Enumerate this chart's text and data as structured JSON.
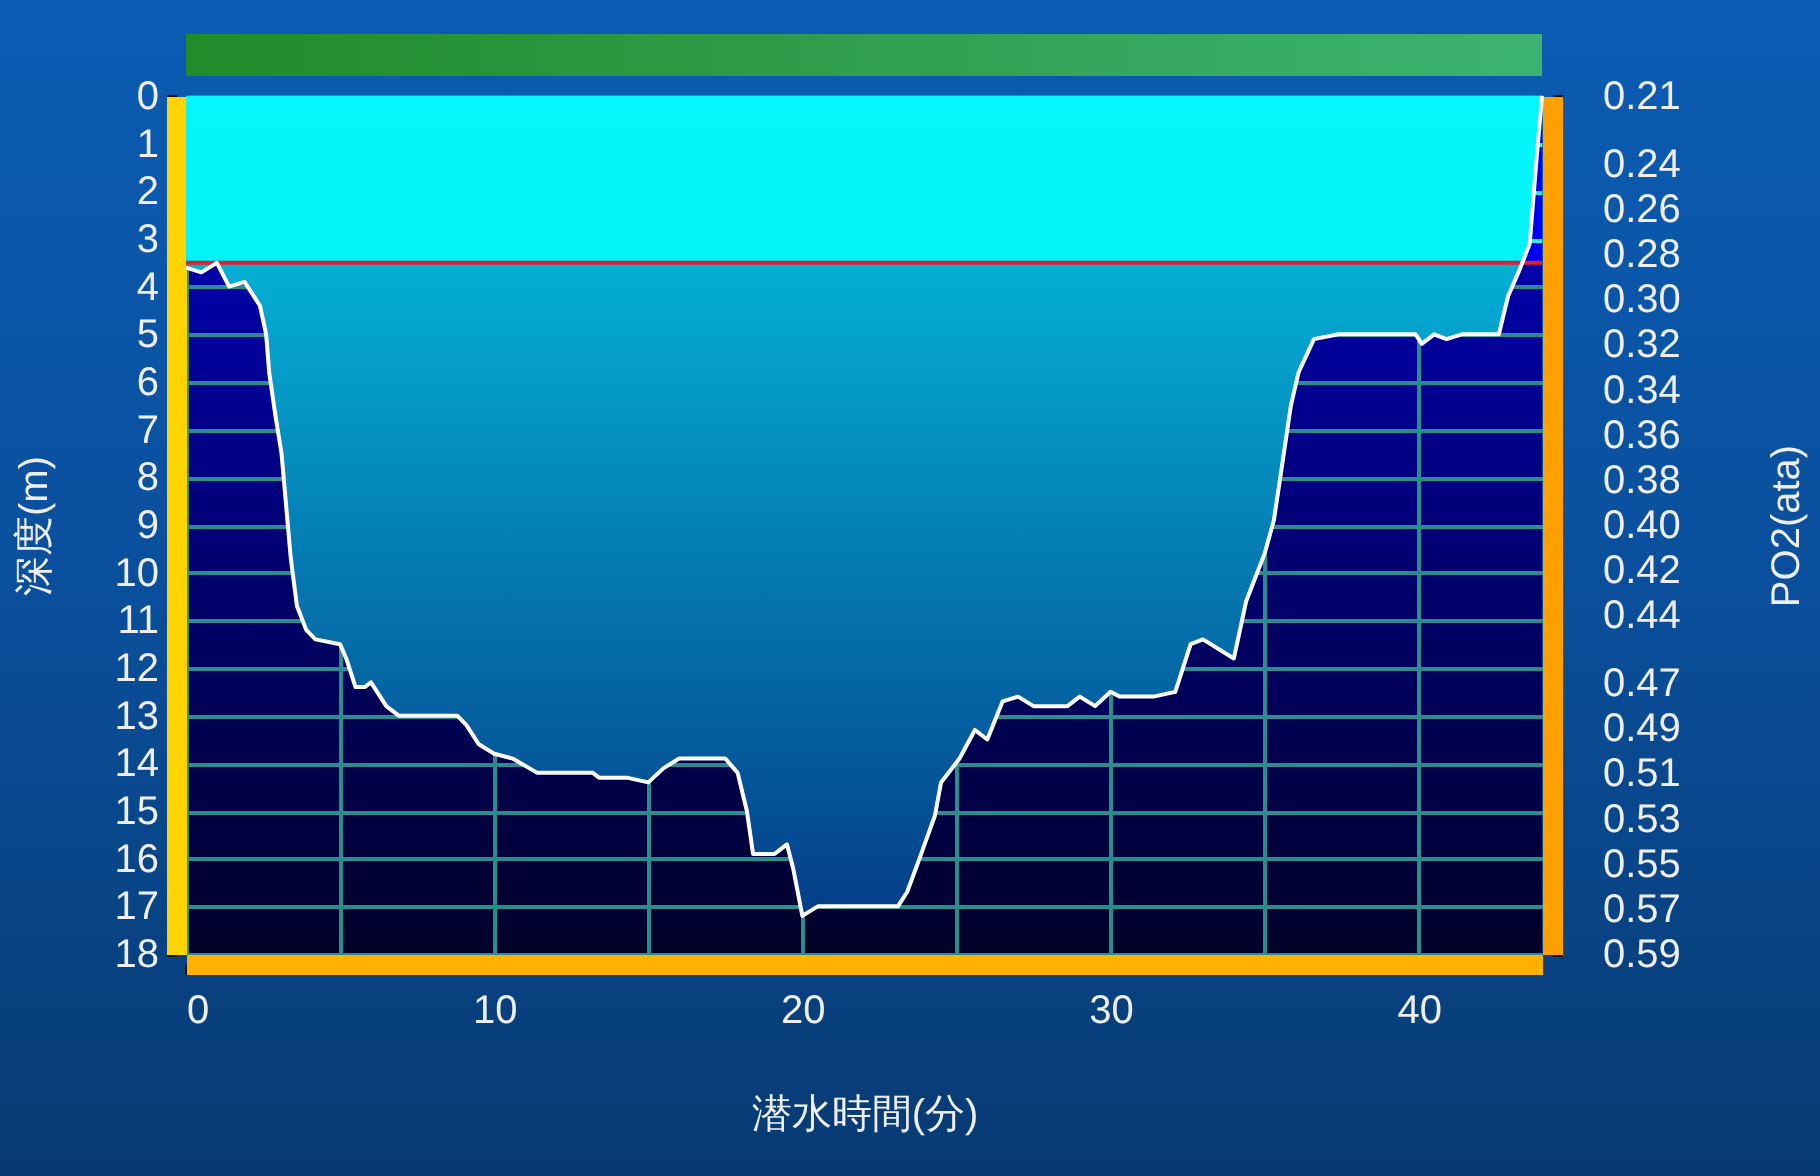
{
  "chart_data": {
    "type": "area",
    "xlabel": "潜水時間(分)",
    "ylabel": "深度(m)",
    "y2label": "PO2(ata)",
    "x": [
      0,
      0.5,
      1,
      1.4,
      1.9,
      2.4,
      2.6,
      2.7,
      2.9,
      3.1,
      3.25,
      3.4,
      3.6,
      3.9,
      4.2,
      5,
      5.2,
      5.5,
      5.8,
      6,
      6.5,
      6.9,
      8.8,
      9.1,
      9.5,
      10,
      10.6,
      11.4,
      13.2,
      13.4,
      14.3,
      15,
      15.5,
      16,
      16.5,
      17.5,
      17.9,
      18.2,
      18.4,
      19.1,
      19.5,
      19.7,
      20,
      20.5,
      23.1,
      23.4,
      23.8,
      24.3,
      24.5,
      25.1,
      25.6,
      26,
      26.5,
      27,
      27.5,
      28.6,
      29,
      29.5,
      30,
      30.3,
      31.4,
      32.1,
      32.6,
      33,
      34,
      34.4,
      35,
      35.3,
      35.6,
      35.85,
      36.1,
      36.6,
      37.4,
      39.9,
      40.1,
      40.5,
      40.9,
      41.4,
      42.6,
      42.9,
      43.3,
      43.6,
      43.8,
      44
    ],
    "series": [
      {
        "color": "#0a80c6",
        "values": [
          3.6,
          3.7,
          3.5,
          4.0,
          3.9,
          4.4,
          5.0,
          5.8,
          6.7,
          7.5,
          8.6,
          9.7,
          10.7,
          11.2,
          11.4,
          11.5,
          11.8,
          12.4,
          12.4,
          12.3,
          12.8,
          13.0,
          13.0,
          13.2,
          13.6,
          13.8,
          13.9,
          14.2,
          14.2,
          14.3,
          14.3,
          14.4,
          14.1,
          13.9,
          13.9,
          13.9,
          14.2,
          15.0,
          15.9,
          15.9,
          15.7,
          16.2,
          17.2,
          17.0,
          17.0,
          16.7,
          16.0,
          15.1,
          14.4,
          13.9,
          13.3,
          13.5,
          12.7,
          12.6,
          12.8,
          12.8,
          12.6,
          12.8,
          12.5,
          12.6,
          12.6,
          12.5,
          11.5,
          11.4,
          11.8,
          10.6,
          9.6,
          8.9,
          7.6,
          6.5,
          5.8,
          5.1,
          5.0,
          5.0,
          5.2,
          5.0,
          5.1,
          5.0,
          5.0,
          4.2,
          3.6,
          3.1,
          1.5,
          0
        ]
      }
    ],
    "xlim": [
      0,
      44
    ],
    "xticks": [
      0,
      {
        "value": 5,
        "label": null
      },
      10,
      {
        "value": 15,
        "label": null
      },
      20,
      {
        "value": 25,
        "label": null
      },
      30,
      {
        "value": 35,
        "label": null
      },
      40
    ],
    "ylim": [
      18,
      0
    ],
    "yticks": [
      0,
      1,
      2,
      3,
      4,
      5,
      6,
      7,
      8,
      9,
      10,
      11,
      12,
      13,
      14,
      15,
      16,
      17,
      18
    ],
    "y2lim": [
      0.59,
      0.21
    ],
    "y2ticks": [
      0.21,
      0.24,
      0.26,
      0.28,
      {
        "value": 0.3,
        "label": "0.30"
      },
      0.32,
      0.34,
      0.36,
      0.38,
      {
        "value": 0.4,
        "label": "0.40"
      },
      0.42,
      0.44,
      0.47,
      0.49,
      0.51,
      0.53,
      0.55,
      0.57,
      0.59
    ],
    "bands": [
      {
        "axis": "y",
        "from": 0,
        "to": 3.5,
        "color": "#00ffff"
      }
    ],
    "ref_lines": [
      {
        "axis": "y",
        "value": 3.5,
        "color": "#e02030"
      }
    ],
    "grid": true
  }
}
